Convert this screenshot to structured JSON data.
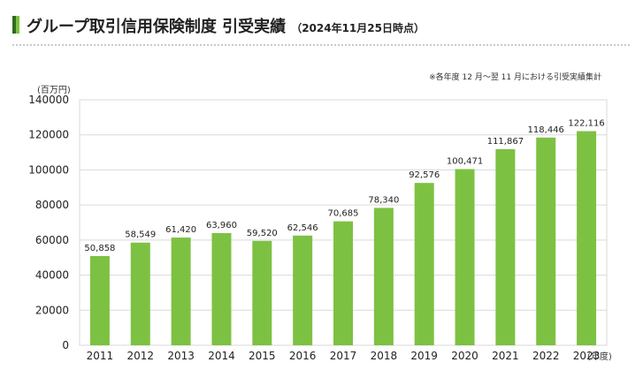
{
  "header": {
    "title": "グループ取引信用保険制度 引受実績",
    "date_note": "（2024年11月25日時点）"
  },
  "colors": {
    "bar": "#7dc142",
    "accent_dark": "#2f6b1f",
    "grid": "#d9d9d9"
  },
  "chart_data": {
    "type": "bar",
    "note": "※各年度 12 月～翌 11 月における引受実績集計",
    "y_unit": "(百万円)",
    "x_unit": "(年度)",
    "categories": [
      "2011",
      "2012",
      "2013",
      "2014",
      "2015",
      "2016",
      "2017",
      "2018",
      "2019",
      "2020",
      "2021",
      "2022",
      "2023"
    ],
    "values": [
      50858,
      58549,
      61420,
      63960,
      59520,
      62546,
      70685,
      78340,
      92576,
      100471,
      111867,
      118446,
      122116
    ],
    "value_labels": [
      "50,858",
      "58,549",
      "61,420",
      "63,960",
      "59,520",
      "62,546",
      "70,685",
      "78,340",
      "92,576",
      "100,471",
      "111,867",
      "118,446",
      "122,116"
    ],
    "yticks": [
      "0",
      "20000",
      "40000",
      "60000",
      "80000",
      "100000",
      "120000",
      "140000"
    ],
    "ylim": [
      0,
      140000
    ],
    "grid": true,
    "legend": "none"
  }
}
